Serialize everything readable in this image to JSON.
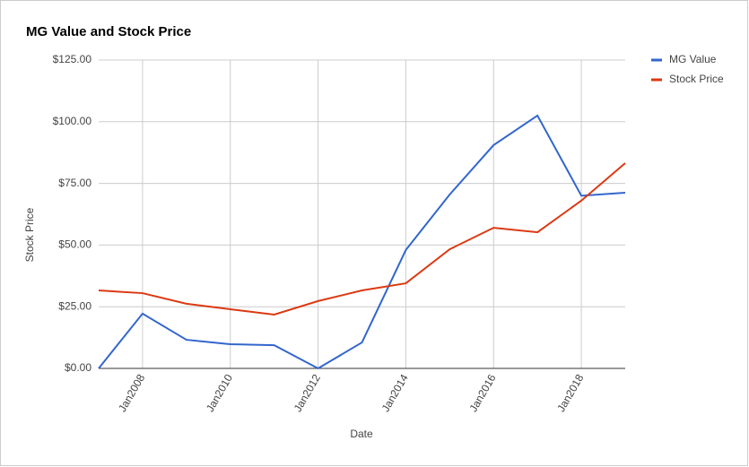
{
  "chart_data": {
    "type": "line",
    "title": "MG Value and Stock Price",
    "x_label": "Date",
    "y_label": "Stock Price",
    "x": [
      2007,
      2008,
      2009,
      2010,
      2011,
      2012,
      2013,
      2014,
      2015,
      2016,
      2017,
      2018,
      2019
    ],
    "xlim": [
      2007,
      2019
    ],
    "xticks": [
      {
        "value": 2008,
        "label": "Jan2008"
      },
      {
        "value": 2010,
        "label": "Jan2010"
      },
      {
        "value": 2012,
        "label": "Jan2012"
      },
      {
        "value": 2014,
        "label": "Jan2014"
      },
      {
        "value": 2016,
        "label": "Jan2016"
      },
      {
        "value": 2018,
        "label": "Jan2018"
      }
    ],
    "ylim": [
      0,
      125
    ],
    "yticks": [
      {
        "value": 0,
        "label": "$0.00"
      },
      {
        "value": 25,
        "label": "$25.00"
      },
      {
        "value": 50,
        "label": "$50.00"
      },
      {
        "value": 75,
        "label": "$75.00"
      },
      {
        "value": 100,
        "label": "$100.00"
      },
      {
        "value": 125,
        "label": "$125.00"
      }
    ],
    "grid": true,
    "legend": "right",
    "series": [
      {
        "name": "MG Value",
        "color": "#3366cc",
        "values": [
          0,
          22.2,
          11.6,
          9.8,
          9.4,
          0,
          10.5,
          48,
          70.5,
          90.5,
          102.5,
          70,
          71.2
        ]
      },
      {
        "name": "Stock Price",
        "color": "#dc3912",
        "values": [
          31.6,
          30.5,
          26.2,
          24,
          21.8,
          27.3,
          31.6,
          34.5,
          48.3,
          57,
          55.2,
          68,
          83.2
        ]
      }
    ]
  }
}
